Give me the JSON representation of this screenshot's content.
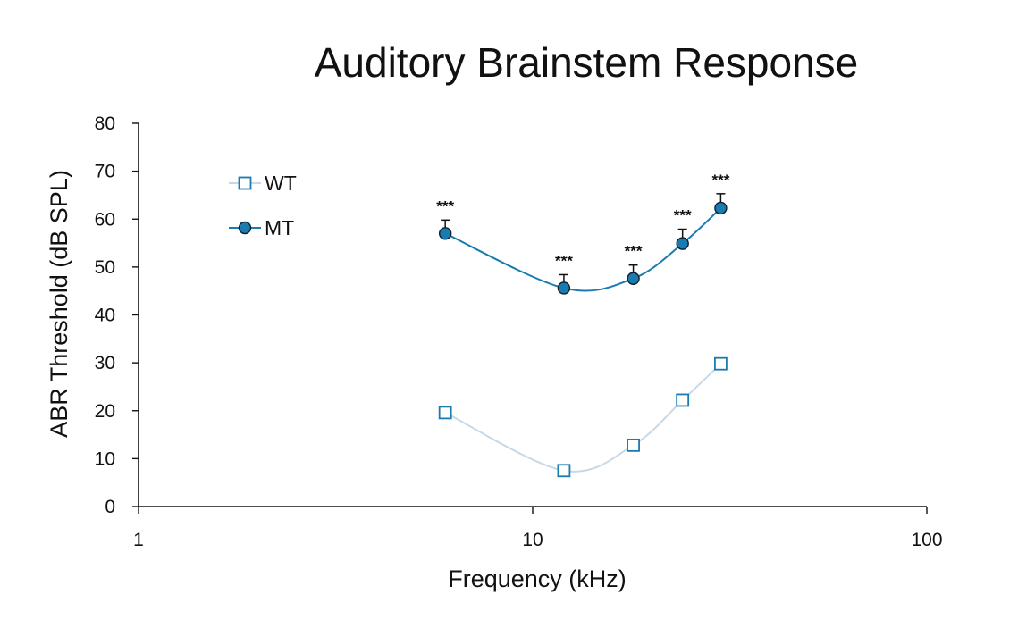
{
  "chart_data": {
    "type": "line",
    "title": "Auditory Brainstem Response",
    "xlabel": "Frequency (kHz)",
    "ylabel": "ABR Threshold (dB SPL)",
    "xscale": "log",
    "xlim": [
      1,
      100
    ],
    "ylim": [
      0,
      80
    ],
    "xticks": [
      1,
      10,
      100
    ],
    "xtick_labels": [
      "1",
      "10",
      "100"
    ],
    "yticks": [
      0,
      10,
      20,
      30,
      40,
      50,
      60,
      70,
      80
    ],
    "ytick_labels": [
      "0",
      "10",
      "20",
      "30",
      "40",
      "50",
      "60",
      "70",
      "80"
    ],
    "grid": false,
    "legend_position": "top-left",
    "series": [
      {
        "name": "WT",
        "marker": "open-square",
        "color": "#1a7bb0",
        "line_color": "#c5d9ea",
        "x": [
          6,
          12,
          18,
          24,
          30
        ],
        "y": [
          19.6,
          7.5,
          12.8,
          22.2,
          29.8
        ],
        "error": [
          0,
          0,
          0,
          0,
          0
        ]
      },
      {
        "name": "MT",
        "marker": "filled-circle",
        "color": "#1a7bb0",
        "line_color": "#1a7bb0",
        "x": [
          6,
          12,
          18,
          24,
          30
        ],
        "y": [
          57,
          45.6,
          47.6,
          54.9,
          62.3
        ],
        "error": [
          2.8,
          2.8,
          2.8,
          3,
          3
        ],
        "annotations": [
          "***",
          "***",
          "***",
          "***",
          "***"
        ]
      }
    ]
  }
}
